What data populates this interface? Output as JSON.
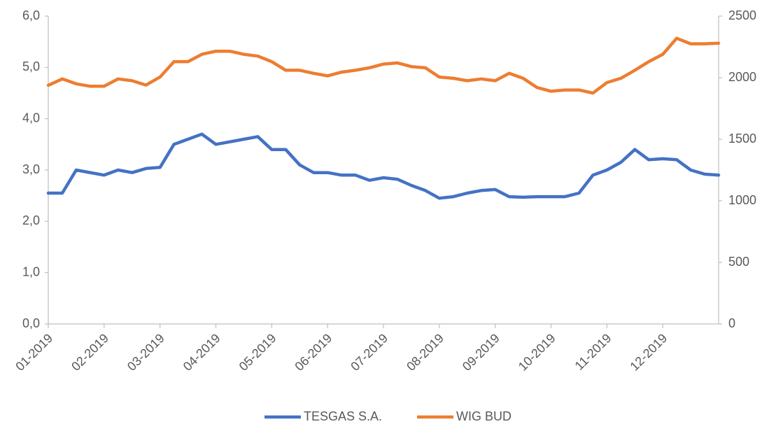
{
  "chart_data": {
    "type": "line",
    "categories": [
      "01-2019",
      null,
      null,
      null,
      "02-2019",
      null,
      null,
      null,
      "03-2019",
      null,
      null,
      null,
      "04-2019",
      null,
      null,
      null,
      "05-2019",
      null,
      null,
      null,
      "06-2019",
      null,
      null,
      null,
      "07-2019",
      null,
      null,
      null,
      "08-2019",
      null,
      null,
      null,
      "09-2019",
      null,
      null,
      null,
      "10-2019",
      null,
      null,
      null,
      "11-2019",
      null,
      null,
      null,
      "12-2019",
      null,
      null,
      null,
      null
    ],
    "series": [
      {
        "name": "TESGAS S.A.",
        "color": "#4472c4",
        "values": [
          2.55,
          2.55,
          3.0,
          2.95,
          2.9,
          3.0,
          2.95,
          3.03,
          3.05,
          3.5,
          3.6,
          3.7,
          3.5,
          3.55,
          3.6,
          3.65,
          3.4,
          3.4,
          3.1,
          2.95,
          2.95,
          2.9,
          2.9,
          2.8,
          2.85,
          2.82,
          2.7,
          2.6,
          2.45,
          2.48,
          2.55,
          2.6,
          2.62,
          2.48,
          2.47,
          2.48,
          2.48,
          2.48,
          2.55,
          2.9,
          3.0,
          3.15,
          3.4,
          3.2,
          3.22,
          3.2,
          3.0,
          2.92,
          2.9
        ]
      },
      {
        "name": "WIG BUD",
        "color": "#ed7d31",
        "axis": "y2",
        "values": [
          1938,
          1990,
          1950,
          1930,
          1930,
          1990,
          1975,
          1940,
          2005,
          2130,
          2130,
          2190,
          2215,
          2215,
          2190,
          2175,
          2130,
          2060,
          2060,
          2035,
          2015,
          2045,
          2060,
          2080,
          2110,
          2120,
          2090,
          2080,
          2005,
          1995,
          1975,
          1990,
          1975,
          2035,
          1995,
          1920,
          1890,
          1900,
          1900,
          1875,
          1960,
          1995,
          2060,
          2130,
          2190,
          2320,
          2275,
          2275,
          2280
        ]
      }
    ],
    "ylim": [
      0,
      6
    ],
    "yticks": [
      {
        "value": 0,
        "label": "0,0"
      },
      {
        "value": 1,
        "label": "1,0"
      },
      {
        "value": 2,
        "label": "2,0"
      },
      {
        "value": 3,
        "label": "3,0"
      },
      {
        "value": 4,
        "label": "4,0"
      },
      {
        "value": 5,
        "label": "5,0"
      },
      {
        "value": 6,
        "label": "6,0"
      }
    ],
    "y2lim": [
      0,
      2500
    ],
    "y2ticks": [
      0,
      500,
      1000,
      1500,
      2000,
      2500
    ],
    "grid": false,
    "legend": "bottom"
  }
}
